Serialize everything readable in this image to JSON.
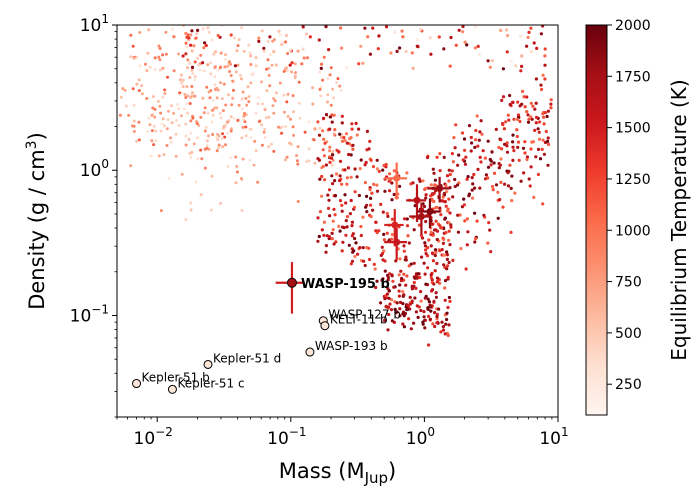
{
  "chart_data": {
    "type": "scatter",
    "xlabel": "Mass (M",
    "xlabel_sub": "Jup",
    "xlabel_close": ")",
    "ylabel": "Density (g / cm",
    "ylabel_sup": "3",
    "ylabel_close": ")",
    "xscale": "log",
    "yscale": "log",
    "xlim": [
      0.005,
      10
    ],
    "ylim": [
      0.02,
      10
    ],
    "xticks": [
      {
        "value": 0.01,
        "base": "10",
        "exp": "−2"
      },
      {
        "value": 0.1,
        "base": "10",
        "exp": "−1"
      },
      {
        "value": 1,
        "base": "10",
        "exp": "0"
      },
      {
        "value": 10,
        "base": "10",
        "exp": "1"
      }
    ],
    "yticks": [
      {
        "value": 0.1,
        "base": "10",
        "exp": "−1"
      },
      {
        "value": 1,
        "base": "10",
        "exp": "0"
      },
      {
        "value": 10,
        "base": "10",
        "exp": "1"
      }
    ],
    "colorbar": {
      "label": "Equilibrium Temperature (K)",
      "range": [
        100,
        2000
      ],
      "ticks": [
        250,
        500,
        750,
        1000,
        1250,
        1500,
        1750,
        2000
      ],
      "colormap": [
        "#fff5f0",
        "#fee0d2",
        "#fcbba1",
        "#fc9272",
        "#fb6a4a",
        "#ef3b2c",
        "#cb181d",
        "#a50f15",
        "#67000d"
      ]
    },
    "background_population_note_free": true,
    "highlight": {
      "name": "WASP-195 b",
      "mass": 0.102,
      "density": 0.168,
      "teq": 1500,
      "mass_err": 0.025,
      "density_err_lo": 0.065,
      "density_err_hi": 0.065
    },
    "labeled_planets": [
      {
        "name": "WASP-127 b",
        "mass": 0.175,
        "density": 0.092
      },
      {
        "name": "KELT-11 b",
        "mass": 0.18,
        "density": 0.085
      },
      {
        "name": "WASP-193 b",
        "mass": 0.139,
        "density": 0.056
      },
      {
        "name": "Kepler-51 d",
        "mass": 0.024,
        "density": 0.046
      },
      {
        "name": "Kepler-51 b",
        "mass": 0.007,
        "density": 0.034
      },
      {
        "name": "Kepler-51 c",
        "mass": 0.013,
        "density": 0.031
      }
    ],
    "comparison_planets": [
      {
        "mass": 0.62,
        "density": 0.88,
        "teq": 1050,
        "dm": 0.12,
        "dd": 0.25
      },
      {
        "mass": 0.88,
        "density": 0.62,
        "teq": 1650,
        "dm": 0.15,
        "dd": 0.18
      },
      {
        "mass": 1.3,
        "density": 0.75,
        "teq": 1800,
        "dm": 0.25,
        "dd": 0.15
      },
      {
        "mass": 1.1,
        "density": 0.52,
        "teq": 1900,
        "dm": 0.22,
        "dd": 0.12
      },
      {
        "mass": 0.95,
        "density": 0.48,
        "teq": 1750,
        "dm": 0.18,
        "dd": 0.12
      },
      {
        "mass": 0.6,
        "density": 0.42,
        "teq": 1450,
        "dm": 0.1,
        "dd": 0.12
      },
      {
        "mass": 0.62,
        "density": 0.32,
        "teq": 1550,
        "dm": 0.12,
        "dd": 0.08
      }
    ]
  }
}
